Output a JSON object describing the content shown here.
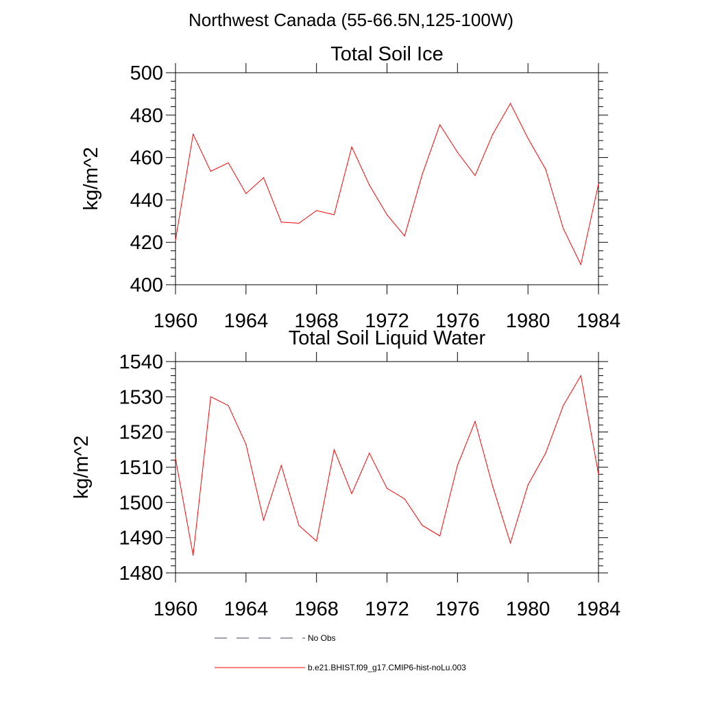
{
  "figure": {
    "suptitle": "Northwest Canada (55-66.5N,125-100W)",
    "line_color": "#ff0000",
    "legend": [
      {
        "label": "No Obs",
        "style": "dashed",
        "color": "#404060"
      },
      {
        "label": "b.e21.BHIST.f09_g17.CMIP6-hist-noLu.003",
        "style": "solid",
        "color": "#ff0000"
      }
    ]
  },
  "chart_data": [
    {
      "type": "line",
      "title": "Total Soil Ice",
      "ylabel": "kg/m^2",
      "xlabel": "",
      "xlim": [
        1960,
        1984
      ],
      "ylim": [
        400,
        500
      ],
      "xticks": [
        1960,
        1964,
        1968,
        1972,
        1976,
        1980,
        1984
      ],
      "yticks": [
        400,
        420,
        440,
        460,
        480,
        500
      ],
      "x": [
        1960,
        1961,
        1962,
        1963,
        1964,
        1965,
        1966,
        1967,
        1968,
        1969,
        1970,
        1971,
        1972,
        1973,
        1974,
        1975,
        1976,
        1977,
        1978,
        1979,
        1980,
        1981,
        1982,
        1983,
        1984
      ],
      "series": [
        {
          "name": "b.e21.BHIST.f09_g17.CMIP6-hist-noLu.003",
          "values": [
            421,
            471,
            453.5,
            457.5,
            443,
            450.5,
            429.5,
            429,
            435,
            433,
            465,
            447,
            433,
            423,
            452,
            475.5,
            462.5,
            451.5,
            471,
            485.5,
            469,
            454.5,
            426.5,
            409.5,
            447.5
          ]
        }
      ]
    },
    {
      "type": "line",
      "title": "Total Soil Liquid Water",
      "ylabel": "kg/m^2",
      "xlabel": "",
      "xlim": [
        1960,
        1984
      ],
      "ylim": [
        1480,
        1540
      ],
      "xticks": [
        1960,
        1964,
        1968,
        1972,
        1976,
        1980,
        1984
      ],
      "yticks": [
        1480,
        1490,
        1500,
        1510,
        1520,
        1530,
        1540
      ],
      "x": [
        1960,
        1961,
        1962,
        1963,
        1964,
        1965,
        1966,
        1967,
        1968,
        1969,
        1970,
        1971,
        1972,
        1973,
        1974,
        1975,
        1976,
        1977,
        1978,
        1979,
        1980,
        1981,
        1982,
        1983,
        1984
      ],
      "series": [
        {
          "name": "b.e21.BHIST.f09_g17.CMIP6-hist-noLu.003",
          "values": [
            1512.5,
            1485,
            1530,
            1527.5,
            1516.5,
            1495,
            1510.5,
            1493.5,
            1489,
            1515,
            1502.5,
            1514,
            1504,
            1501,
            1493.5,
            1490.5,
            1510.5,
            1523,
            1504.5,
            1488.5,
            1505,
            1514,
            1527.5,
            1536,
            1508
          ]
        }
      ]
    }
  ]
}
